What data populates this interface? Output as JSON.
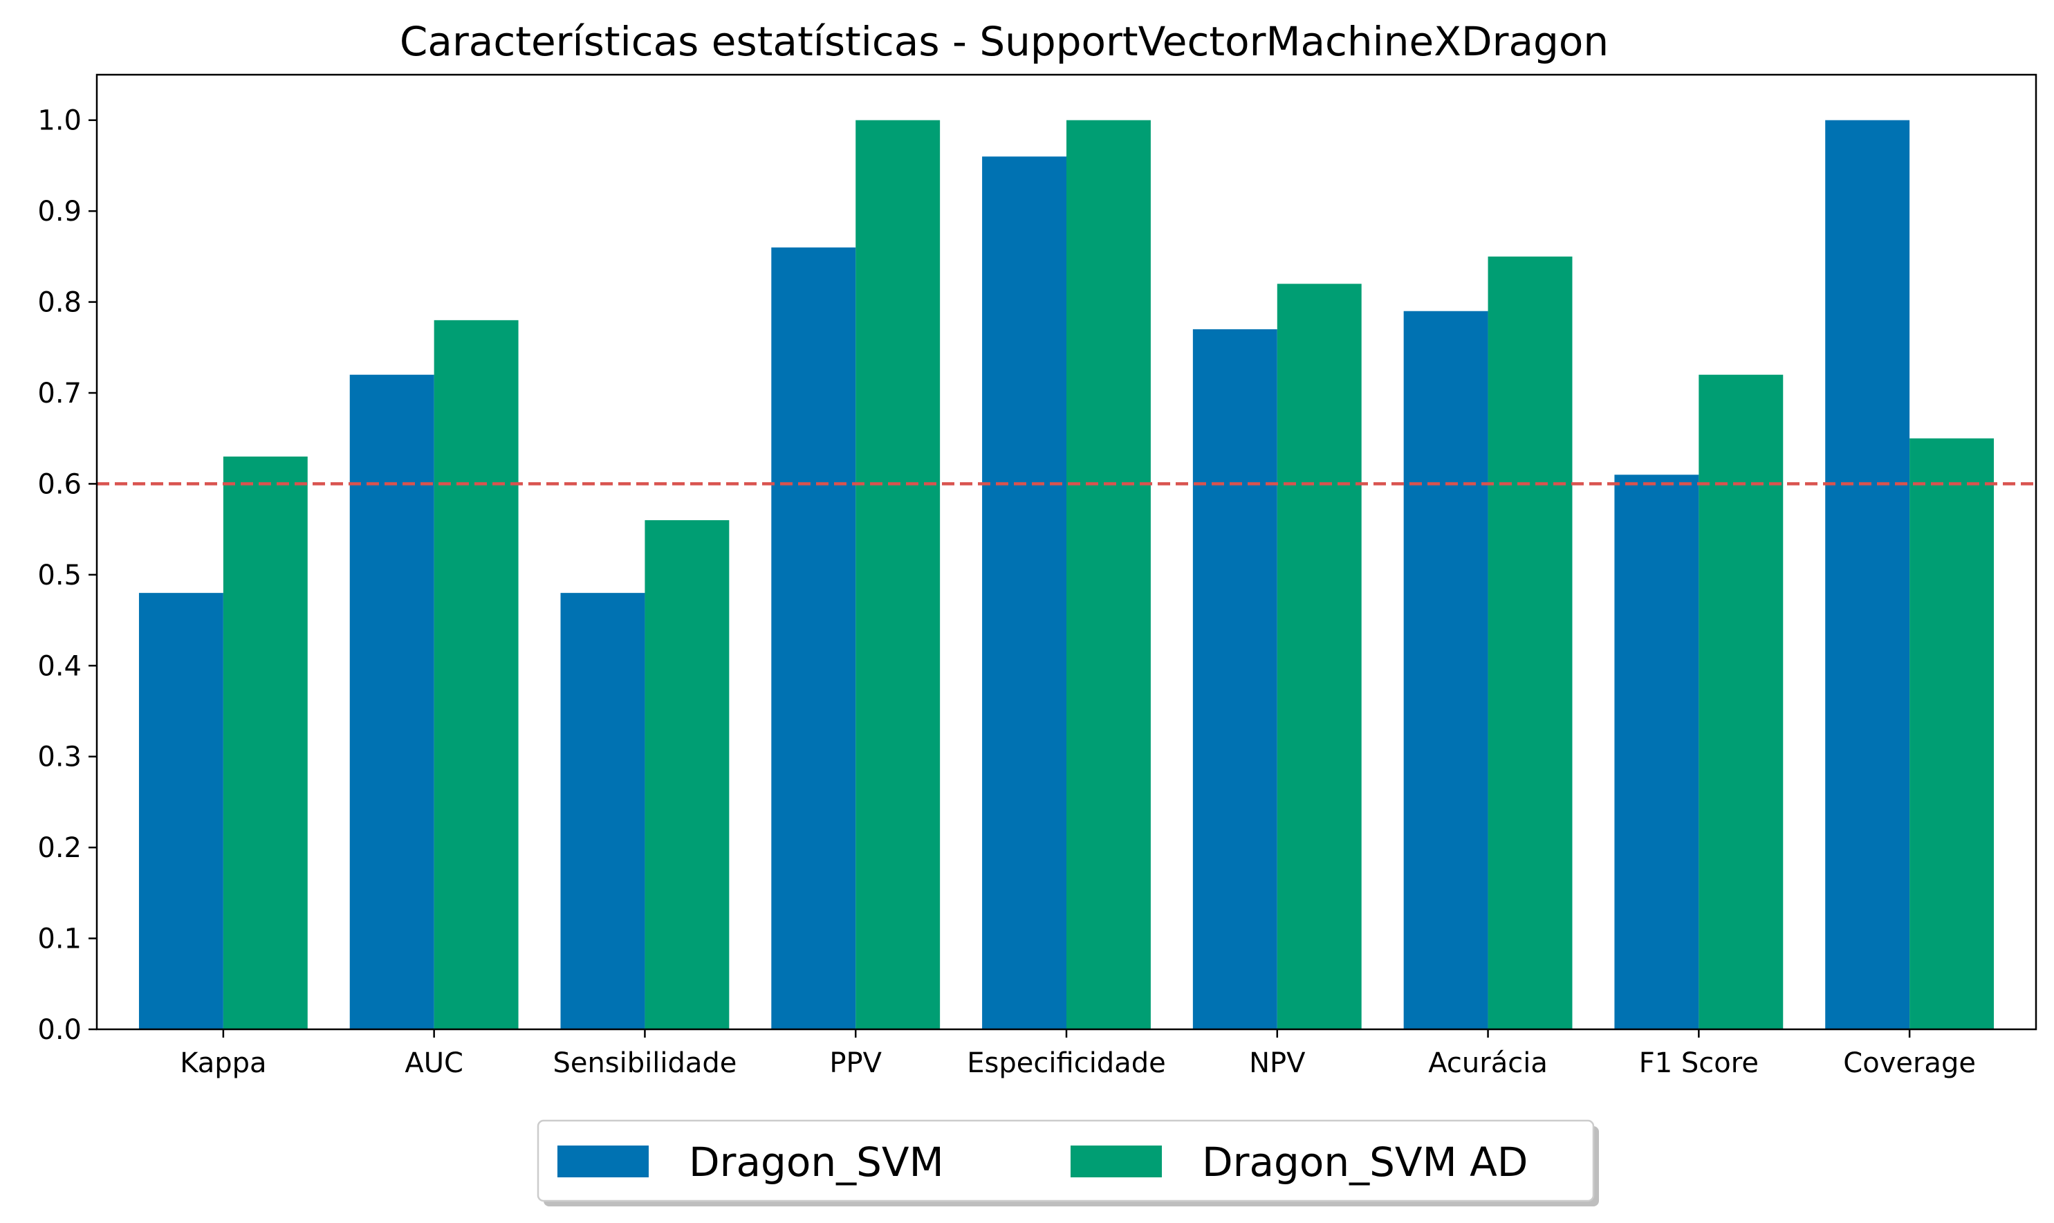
{
  "chart_data": {
    "type": "bar",
    "title": "Características estatísticas - SupportVectorMachineXDragon",
    "xlabel": "",
    "ylabel": "",
    "categories": [
      "Kappa",
      "AUC",
      "Sensibilidade",
      "PPV",
      "Especificidade",
      "NPV",
      "Acurácia",
      "F1 Score",
      "Coverage"
    ],
    "series": [
      {
        "name": "Dragon_SVM",
        "color": "#0072b2",
        "values": [
          0.48,
          0.72,
          0.48,
          0.86,
          0.96,
          0.77,
          0.79,
          0.61,
          1.0
        ]
      },
      {
        "name": "Dragon_SVM AD",
        "color": "#009e73",
        "values": [
          0.63,
          0.78,
          0.56,
          1.0,
          1.0,
          0.82,
          0.85,
          0.72,
          0.65
        ]
      }
    ],
    "ylim": [
      0,
      1.05
    ],
    "yticks": [
      "0.0",
      "0.1",
      "0.2",
      "0.3",
      "0.4",
      "0.5",
      "0.6",
      "0.7",
      "0.8",
      "0.9",
      "1.0"
    ],
    "threshold": {
      "value": 0.6,
      "color": "#d9534f",
      "style": "dashed"
    },
    "grid": false,
    "legend_position": "bottom-center"
  }
}
